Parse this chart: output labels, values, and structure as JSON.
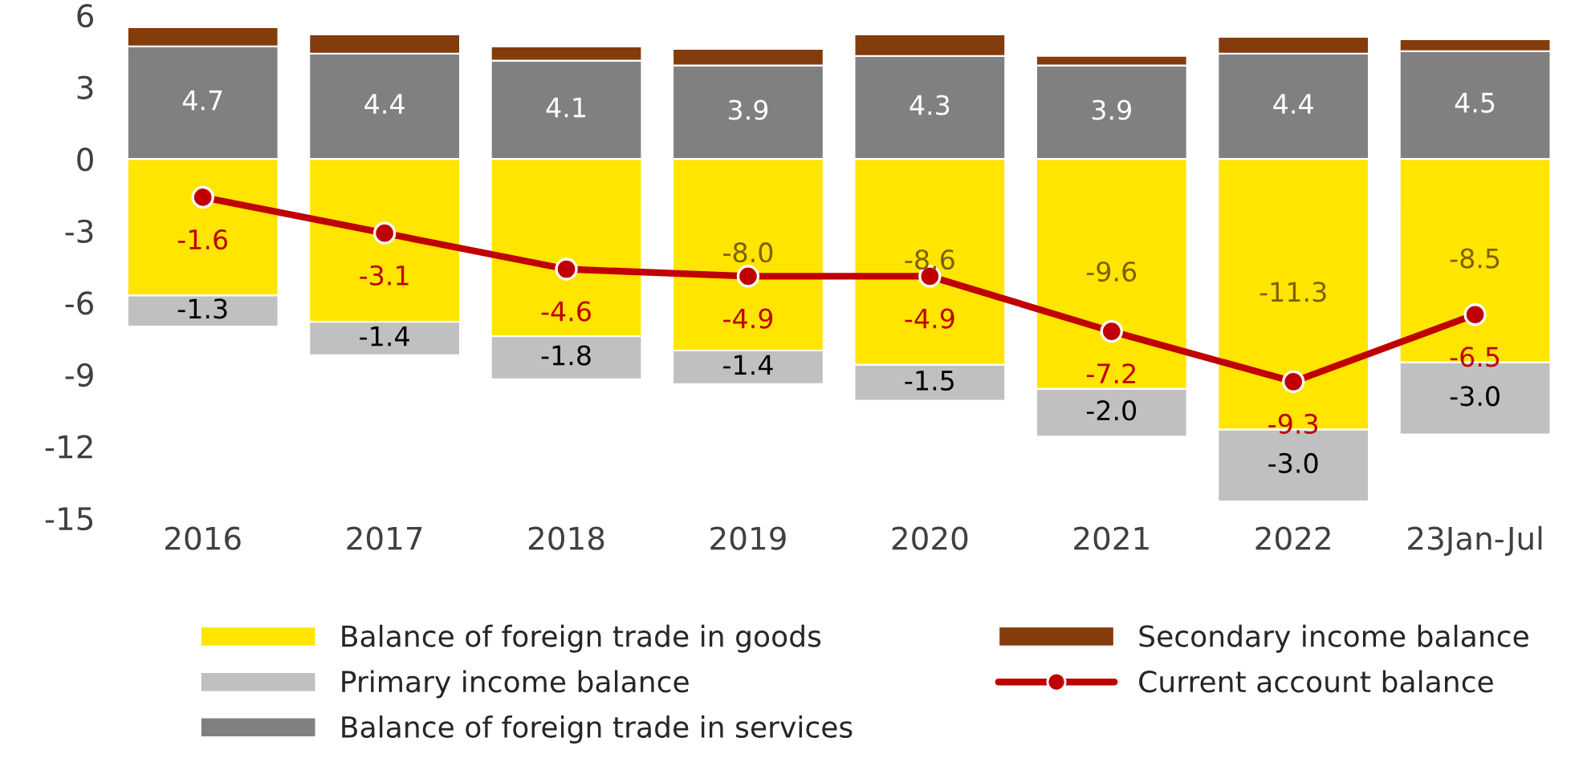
{
  "chart_data": {
    "type": "bar",
    "stacked": true,
    "categories": [
      "2016",
      "2017",
      "2018",
      "2019",
      "2020",
      "2021",
      "2022",
      "23Jan-Jul"
    ],
    "ylim": [
      -15,
      6
    ],
    "yticks": [
      -15,
      -12,
      -9,
      -6,
      -3,
      0,
      3,
      6
    ],
    "grid": false,
    "legend": "bottom",
    "series": [
      {
        "name": "Balance of foreign trade in goods",
        "color": "#ffe500",
        "values": [
          -5.7,
          -6.8,
          -7.4,
          -8.0,
          -8.6,
          -9.6,
          -11.3,
          -8.5
        ],
        "value_labels": [
          null,
          null,
          null,
          "-8.0",
          "-8.6",
          "-9.6",
          "-11.3",
          "-8.5"
        ]
      },
      {
        "name": "Primary income balance",
        "color": "#c0c0c0",
        "values": [
          -1.3,
          -1.4,
          -1.8,
          -1.4,
          -1.5,
          -2.0,
          -3.0,
          -3.0
        ],
        "value_labels": [
          "-1.3",
          "-1.4",
          "-1.8",
          "-1.4",
          "-1.5",
          "-2.0",
          "-3.0",
          "-3.0"
        ]
      },
      {
        "name": "Balance of foreign trade in services",
        "color": "#808080",
        "values": [
          4.7,
          4.4,
          4.1,
          3.9,
          4.3,
          3.9,
          4.4,
          4.5
        ],
        "value_labels": [
          "4.7",
          "4.4",
          "4.1",
          "3.9",
          "4.3",
          "3.9",
          "4.4",
          "4.5"
        ]
      },
      {
        "name": "Secondary income balance",
        "color": "#843c0c",
        "values": [
          0.8,
          0.8,
          0.6,
          0.7,
          0.9,
          0.4,
          0.7,
          0.5
        ]
      },
      {
        "name": "Current account balance",
        "type": "line",
        "color": "#c00000",
        "marker": "circle",
        "line_style": "solid",
        "values": [
          -1.6,
          -3.1,
          -4.6,
          -4.9,
          -4.9,
          -7.2,
          -9.3,
          -6.5
        ],
        "value_labels": [
          "-1.6",
          "-3.1",
          "-4.6",
          "-4.9",
          "-4.9",
          "-7.2",
          "-9.3",
          "-6.5"
        ]
      }
    ]
  }
}
